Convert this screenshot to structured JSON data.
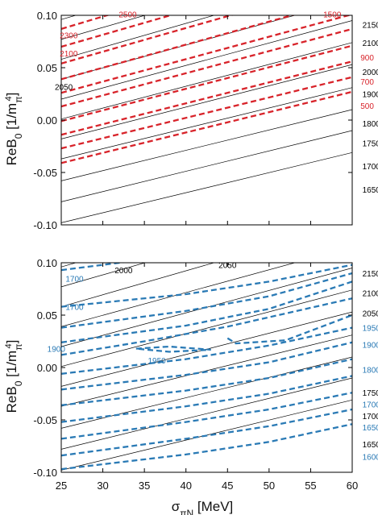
{
  "colors": {
    "red": "#d8232a",
    "blue": "#2a7ab5",
    "black": "#000000"
  },
  "chart_data": [
    {
      "type": "line",
      "panel": "top",
      "xlim": [
        25,
        60
      ],
      "ylim": [
        -0.1,
        0.1
      ],
      "x_ticks": [
        "25",
        "30",
        "35",
        "40",
        "45",
        "50",
        "55",
        "60"
      ],
      "y_ticks": [
        "0.10",
        "0.05",
        "0.00",
        "-0.05",
        "-0.10"
      ],
      "ylabel_main": "ReB",
      "ylabel_sub": "0",
      "ylabel_unit_open": "[1/m",
      "ylabel_unit_sub": "π",
      "ylabel_unit_sup": "4",
      "ylabel_close": "]",
      "black_contours": [
        {
          "x": [
            25,
            60
          ],
          "y": [
            0.137,
            0.217
          ]
        },
        {
          "x": [
            25,
            60
          ],
          "y": [
            0.118,
            0.198
          ]
        },
        {
          "x": [
            25,
            60
          ],
          "y": [
            0.096,
            0.176
          ]
        },
        {
          "x": [
            25,
            60
          ],
          "y": [
            0.077,
            0.157
          ]
        },
        {
          "x": [
            25,
            60
          ],
          "y": [
            0.058,
            0.138
          ]
        },
        {
          "x": [
            25,
            60
          ],
          "y": [
            0.039,
            0.115
          ]
        },
        {
          "x": [
            25,
            60
          ],
          "y": [
            0.02,
            0.095
          ]
        },
        {
          "x": [
            25,
            60
          ],
          "y": [
            0.001,
            0.074
          ]
        },
        {
          "x": [
            25,
            60
          ],
          "y": [
            -0.018,
            0.053
          ]
        },
        {
          "x": [
            25,
            60
          ],
          "y": [
            -0.037,
            0.031
          ]
        },
        {
          "x": [
            25,
            60
          ],
          "y": [
            -0.058,
            0.01
          ]
        },
        {
          "x": [
            25,
            60
          ],
          "y": [
            -0.078,
            -0.01
          ]
        },
        {
          "x": [
            25,
            60
          ],
          "y": [
            -0.098,
            -0.031
          ]
        }
      ],
      "red_contours": [
        {
          "x": [
            25,
            60
          ],
          "y": [
            0.102,
            0.187
          ]
        },
        {
          "x": [
            25,
            60
          ],
          "y": [
            0.087,
            0.17
          ]
        },
        {
          "x": [
            25,
            60
          ],
          "y": [
            0.07,
            0.15
          ]
        },
        {
          "x": [
            25,
            60
          ],
          "y": [
            0.054,
            0.133
          ]
        },
        {
          "x": [
            25,
            60
          ],
          "y": [
            0.039,
            0.116
          ]
        },
        {
          "x": [
            25,
            60
          ],
          "y": [
            0.026,
            0.101
          ]
        },
        {
          "x": [
            25,
            60
          ],
          "y": [
            0.013,
            0.087
          ]
        },
        {
          "x": [
            25,
            60
          ],
          "y": [
            -0.001,
            0.071
          ]
        },
        {
          "x": [
            25,
            60
          ],
          "y": [
            -0.014,
            0.056
          ]
        },
        {
          "x": [
            25,
            60
          ],
          "y": [
            -0.027,
            0.041
          ]
        },
        {
          "x": [
            25,
            60
          ],
          "y": [
            -0.041,
            0.027
          ]
        }
      ],
      "labels": [
        {
          "text": "2500",
          "x": 33.0,
          "y": 0.101,
          "color": "red"
        },
        {
          "text": "1500",
          "x": 57.6,
          "y": 0.101,
          "color": "red"
        },
        {
          "text": "2300",
          "x": 25.9,
          "y": 0.081,
          "color": "red"
        },
        {
          "text": "2100",
          "x": 25.9,
          "y": 0.064,
          "color": "red"
        },
        {
          "text": "2050",
          "x": 25.3,
          "y": 0.032,
          "color": "black"
        },
        {
          "text": "2150",
          "x": 62.3,
          "y": 0.091,
          "color": "black"
        },
        {
          "text": "2100",
          "x": 62.3,
          "y": 0.074,
          "color": "black"
        },
        {
          "text": "900",
          "x": 61.8,
          "y": 0.06,
          "color": "red"
        },
        {
          "text": "2000",
          "x": 62.3,
          "y": 0.046,
          "color": "black"
        },
        {
          "text": "700",
          "x": 61.8,
          "y": 0.037,
          "color": "red"
        },
        {
          "text": "1900",
          "x": 62.3,
          "y": 0.025,
          "color": "black"
        },
        {
          "text": "500",
          "x": 61.8,
          "y": 0.014,
          "color": "red"
        },
        {
          "text": "1800",
          "x": 62.3,
          "y": -0.003,
          "color": "black"
        },
        {
          "text": "1750",
          "x": 62.3,
          "y": -0.022,
          "color": "black"
        },
        {
          "text": "1700",
          "x": 62.3,
          "y": -0.044,
          "color": "black"
        },
        {
          "text": "1650",
          "x": 62.3,
          "y": -0.066,
          "color": "black"
        }
      ]
    },
    {
      "type": "line",
      "panel": "bottom",
      "xlim": [
        25,
        60
      ],
      "ylim": [
        -0.1,
        0.1
      ],
      "x_ticks": [
        "25",
        "30",
        "35",
        "40",
        "45",
        "50",
        "55",
        "60"
      ],
      "y_ticks": [
        "0.10",
        "0.05",
        "0.00",
        "-0.05",
        "-0.10"
      ],
      "xlabel_main": "σ",
      "xlabel_sub": "πN",
      "xlabel_unit": " [MeV]",
      "ylabel_main": "ReB",
      "ylabel_sub": "0",
      "ylabel_unit_open": "[1/m",
      "ylabel_unit_sub": "π",
      "ylabel_unit_sup": "4",
      "ylabel_close": "]",
      "black_contours": [
        {
          "x": [
            25,
            60
          ],
          "y": [
            0.137,
            0.217
          ]
        },
        {
          "x": [
            25,
            60
          ],
          "y": [
            0.118,
            0.198
          ]
        },
        {
          "x": [
            25,
            60
          ],
          "y": [
            0.096,
            0.176
          ]
        },
        {
          "x": [
            25,
            60
          ],
          "y": [
            0.077,
            0.157
          ]
        },
        {
          "x": [
            25,
            60
          ],
          "y": [
            0.058,
            0.138
          ]
        },
        {
          "x": [
            25,
            60
          ],
          "y": [
            0.039,
            0.115
          ]
        },
        {
          "x": [
            25,
            60
          ],
          "y": [
            0.02,
            0.095
          ]
        },
        {
          "x": [
            25,
            60
          ],
          "y": [
            0.001,
            0.074
          ]
        },
        {
          "x": [
            25,
            60
          ],
          "y": [
            -0.018,
            0.053
          ]
        },
        {
          "x": [
            25,
            60
          ],
          "y": [
            -0.037,
            0.031
          ]
        },
        {
          "x": [
            25,
            60
          ],
          "y": [
            -0.058,
            0.01
          ]
        },
        {
          "x": [
            25,
            60
          ],
          "y": [
            -0.078,
            -0.01
          ]
        },
        {
          "x": [
            25,
            60
          ],
          "y": [
            -0.098,
            -0.031
          ]
        }
      ],
      "blue_contours": [
        {
          "x": [
            25,
            30,
            35
          ],
          "y": [
            0.093,
            0.098,
            0.103
          ]
        },
        {
          "x": [
            25,
            40,
            50,
            60
          ],
          "y": [
            0.058,
            0.07,
            0.082,
            0.098
          ]
        },
        {
          "x": [
            25,
            40,
            50,
            60
          ],
          "y": [
            0.038,
            0.054,
            0.068,
            0.09
          ]
        },
        {
          "x": [
            25,
            40,
            50,
            60
          ],
          "y": [
            0.024,
            0.04,
            0.056,
            0.082
          ]
        },
        {
          "x": [
            25,
            35,
            45,
            60
          ],
          "y": [
            0.012,
            0.025,
            0.039,
            0.066
          ]
        },
        {
          "x": [
            34,
            38,
            43,
            38,
            34
          ],
          "y": [
            0.018,
            0.02,
            0.017,
            0.015,
            0.018
          ]
        },
        {
          "x": [
            45,
            46,
            52,
            60
          ],
          "y": [
            0.028,
            0.023,
            0.026,
            0.05
          ]
        },
        {
          "x": [
            25,
            40,
            50,
            60
          ],
          "y": [
            -0.006,
            0.008,
            0.021,
            0.038
          ]
        },
        {
          "x": [
            25,
            40,
            50,
            60
          ],
          "y": [
            -0.021,
            -0.007,
            0.005,
            0.024
          ]
        },
        {
          "x": [
            25,
            40,
            50,
            60
          ],
          "y": [
            -0.036,
            -0.022,
            -0.01,
            0.008
          ]
        },
        {
          "x": [
            25,
            40,
            50,
            60
          ],
          "y": [
            -0.052,
            -0.037,
            -0.025,
            -0.008
          ]
        },
        {
          "x": [
            25,
            40,
            50,
            60
          ],
          "y": [
            -0.068,
            -0.052,
            -0.04,
            -0.024
          ]
        },
        {
          "x": [
            25,
            40,
            50,
            60
          ],
          "y": [
            -0.084,
            -0.068,
            -0.056,
            -0.04
          ]
        },
        {
          "x": [
            25,
            40,
            50,
            60
          ],
          "y": [
            -0.097,
            -0.083,
            -0.071,
            -0.054
          ]
        }
      ],
      "labels": [
        {
          "text": "1700",
          "x": 26.6,
          "y": 0.085,
          "color": "blue"
        },
        {
          "text": "2000",
          "x": 32.5,
          "y": 0.093,
          "color": "black"
        },
        {
          "text": "2050",
          "x": 45.0,
          "y": 0.098,
          "color": "black"
        },
        {
          "text": "1700",
          "x": 26.6,
          "y": 0.058,
          "color": "blue"
        },
        {
          "text": "1900",
          "x": 24.4,
          "y": 0.018,
          "color": "blue"
        },
        {
          "text": "1950",
          "x": 36.5,
          "y": 0.007,
          "color": "blue"
        },
        {
          "text": "2150",
          "x": 62.3,
          "y": 0.09,
          "color": "black"
        },
        {
          "text": "2100",
          "x": 62.3,
          "y": 0.071,
          "color": "black"
        },
        {
          "text": "2050",
          "x": 62.3,
          "y": 0.052,
          "color": "black"
        },
        {
          "text": "1950",
          "x": 62.3,
          "y": 0.038,
          "color": "blue"
        },
        {
          "text": "1900",
          "x": 62.3,
          "y": 0.022,
          "color": "blue"
        },
        {
          "text": "1800",
          "x": 62.3,
          "y": -0.002,
          "color": "blue"
        },
        {
          "text": "1750",
          "x": 62.3,
          "y": -0.024,
          "color": "black"
        },
        {
          "text": "1700",
          "x": 62.3,
          "y": -0.035,
          "color": "blue"
        },
        {
          "text": "1700",
          "x": 62.3,
          "y": -0.046,
          "color": "black"
        },
        {
          "text": "1650",
          "x": 62.3,
          "y": -0.057,
          "color": "blue"
        },
        {
          "text": "1650",
          "x": 62.3,
          "y": -0.073,
          "color": "black"
        },
        {
          "text": "1600",
          "x": 62.3,
          "y": -0.085,
          "color": "blue"
        }
      ]
    }
  ]
}
